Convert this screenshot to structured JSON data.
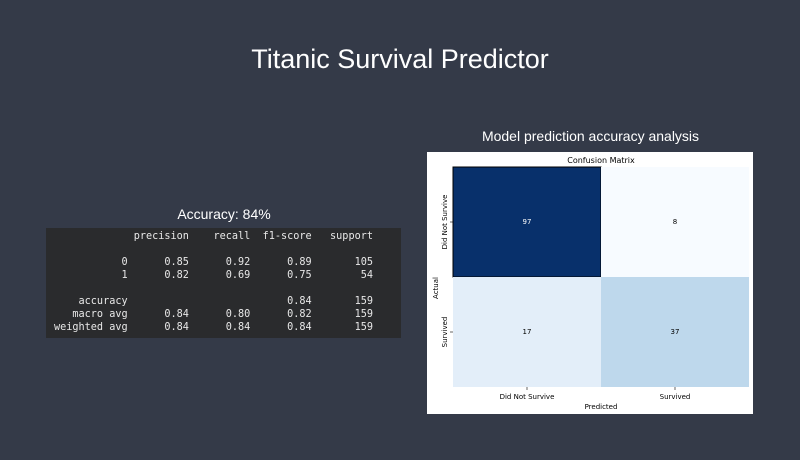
{
  "app": {
    "title": "Titanic Survival Predictor"
  },
  "report": {
    "heading": "Accuracy: 84%",
    "columns": [
      "",
      "precision",
      "recall",
      "f1-score",
      "support"
    ],
    "rows": [
      [
        "0",
        "0.85",
        "0.92",
        "0.89",
        "105"
      ],
      [
        "1",
        "0.82",
        "0.69",
        "0.75",
        "54"
      ],
      null,
      [
        "accuracy",
        "",
        "",
        "0.84",
        "159"
      ],
      [
        "macro avg",
        "0.84",
        "0.80",
        "0.82",
        "159"
      ],
      [
        "weighted avg",
        "0.84",
        "0.84",
        "0.84",
        "159"
      ]
    ]
  },
  "figure": {
    "caption": "Model prediction accuracy analysis"
  },
  "chart_data": {
    "type": "heatmap",
    "title": "Confusion Matrix",
    "xlabel": "Predicted",
    "ylabel": "Actual",
    "x_categories": [
      "Did Not Survive",
      "Survived"
    ],
    "y_categories": [
      "Did Not Survive",
      "Survived"
    ],
    "values": [
      [
        97,
        8
      ],
      [
        17,
        37
      ]
    ],
    "colormap": "Blues",
    "colors": {
      "low": "#f7fbff",
      "high": "#08306b"
    }
  }
}
